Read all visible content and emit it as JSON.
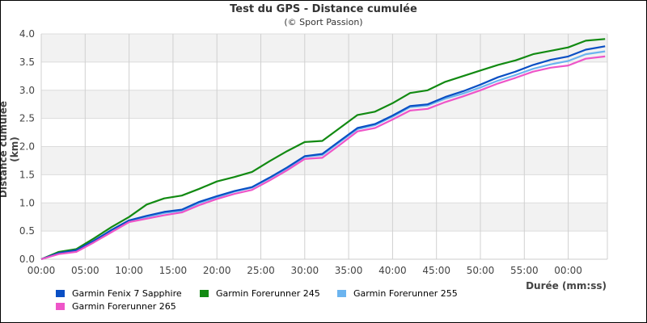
{
  "chart": {
    "title": "Test du GPS - Distance cumulée",
    "subtitle": "(© Sport Passion)",
    "xlabel": "Durée (mm:ss)",
    "ylabel": "Distance cumulée (km)"
  },
  "legend": [
    {
      "label": "Garmin Fenix 7 Sapphire",
      "color": "#0a4fc4"
    },
    {
      "label": "Garmin Forerunner 245",
      "color": "#128a12"
    },
    {
      "label": "Garmin Forerunner 255",
      "color": "#6cb4ef"
    },
    {
      "label": "Garmin Forerunner 265",
      "color": "#ee55c8"
    }
  ],
  "chart_data": {
    "type": "line",
    "title": "Test du GPS - Distance cumulée",
    "subtitle": "(© Sport Passion)",
    "xlabel": "Durée (mm:ss)",
    "ylabel": "Distance cumulée (km)",
    "x_ticks": [
      "00:00",
      "05:00",
      "10:00",
      "15:00",
      "20:00",
      "25:00",
      "30:00",
      "35:00",
      "40:00",
      "45:00",
      "50:00",
      "55:00",
      "00:00"
    ],
    "y_ticks": [
      "0.0",
      "0.5",
      "1.0",
      "1.5",
      "2.0",
      "2.5",
      "3.0",
      "3.5",
      "4.0"
    ],
    "ylim": [
      0,
      4.0
    ],
    "xlim_minutes": [
      0,
      64.2
    ],
    "grid": true,
    "legend_position": "bottom",
    "x_minutes": [
      0,
      2,
      4,
      6,
      8,
      10,
      12,
      14,
      16,
      18,
      20,
      22,
      24,
      26,
      28,
      30,
      32,
      34,
      36,
      38,
      40,
      42,
      44,
      46,
      48,
      50,
      52,
      54,
      56,
      58,
      60,
      62,
      64.2
    ],
    "series": [
      {
        "name": "Garmin Fenix 7 Sapphire",
        "color": "#0a4fc4",
        "values": [
          0,
          0.11,
          0.16,
          0.33,
          0.52,
          0.69,
          0.77,
          0.84,
          0.88,
          1.02,
          1.12,
          1.21,
          1.28,
          1.45,
          1.63,
          1.83,
          1.87,
          2.1,
          2.33,
          2.4,
          2.55,
          2.72,
          2.75,
          2.88,
          2.98,
          3.1,
          3.23,
          3.33,
          3.45,
          3.54,
          3.6,
          3.72,
          3.78
        ]
      },
      {
        "name": "Garmin Forerunner 245",
        "color": "#128a12",
        "values": [
          0,
          0.13,
          0.18,
          0.37,
          0.57,
          0.75,
          0.97,
          1.08,
          1.13,
          1.25,
          1.38,
          1.46,
          1.55,
          1.74,
          1.92,
          2.08,
          2.1,
          2.33,
          2.56,
          2.62,
          2.77,
          2.95,
          3.0,
          3.15,
          3.25,
          3.35,
          3.45,
          3.53,
          3.64,
          3.7,
          3.76,
          3.88,
          3.91
        ]
      },
      {
        "name": "Garmin Forerunner 255",
        "color": "#6cb4ef",
        "values": [
          0,
          0.1,
          0.15,
          0.32,
          0.51,
          0.68,
          0.75,
          0.82,
          0.86,
          1.0,
          1.1,
          1.2,
          1.27,
          1.44,
          1.61,
          1.82,
          1.85,
          2.08,
          2.31,
          2.38,
          2.53,
          2.7,
          2.73,
          2.85,
          2.94,
          3.05,
          3.17,
          3.27,
          3.38,
          3.46,
          3.52,
          3.64,
          3.69
        ]
      },
      {
        "name": "Garmin Forerunner 265",
        "color": "#ee55c8",
        "values": [
          0,
          0.09,
          0.13,
          0.3,
          0.48,
          0.66,
          0.72,
          0.78,
          0.83,
          0.96,
          1.07,
          1.16,
          1.23,
          1.4,
          1.58,
          1.78,
          1.8,
          2.03,
          2.27,
          2.33,
          2.48,
          2.64,
          2.67,
          2.79,
          2.89,
          3.0,
          3.12,
          3.22,
          3.33,
          3.4,
          3.44,
          3.56,
          3.6
        ]
      }
    ]
  }
}
